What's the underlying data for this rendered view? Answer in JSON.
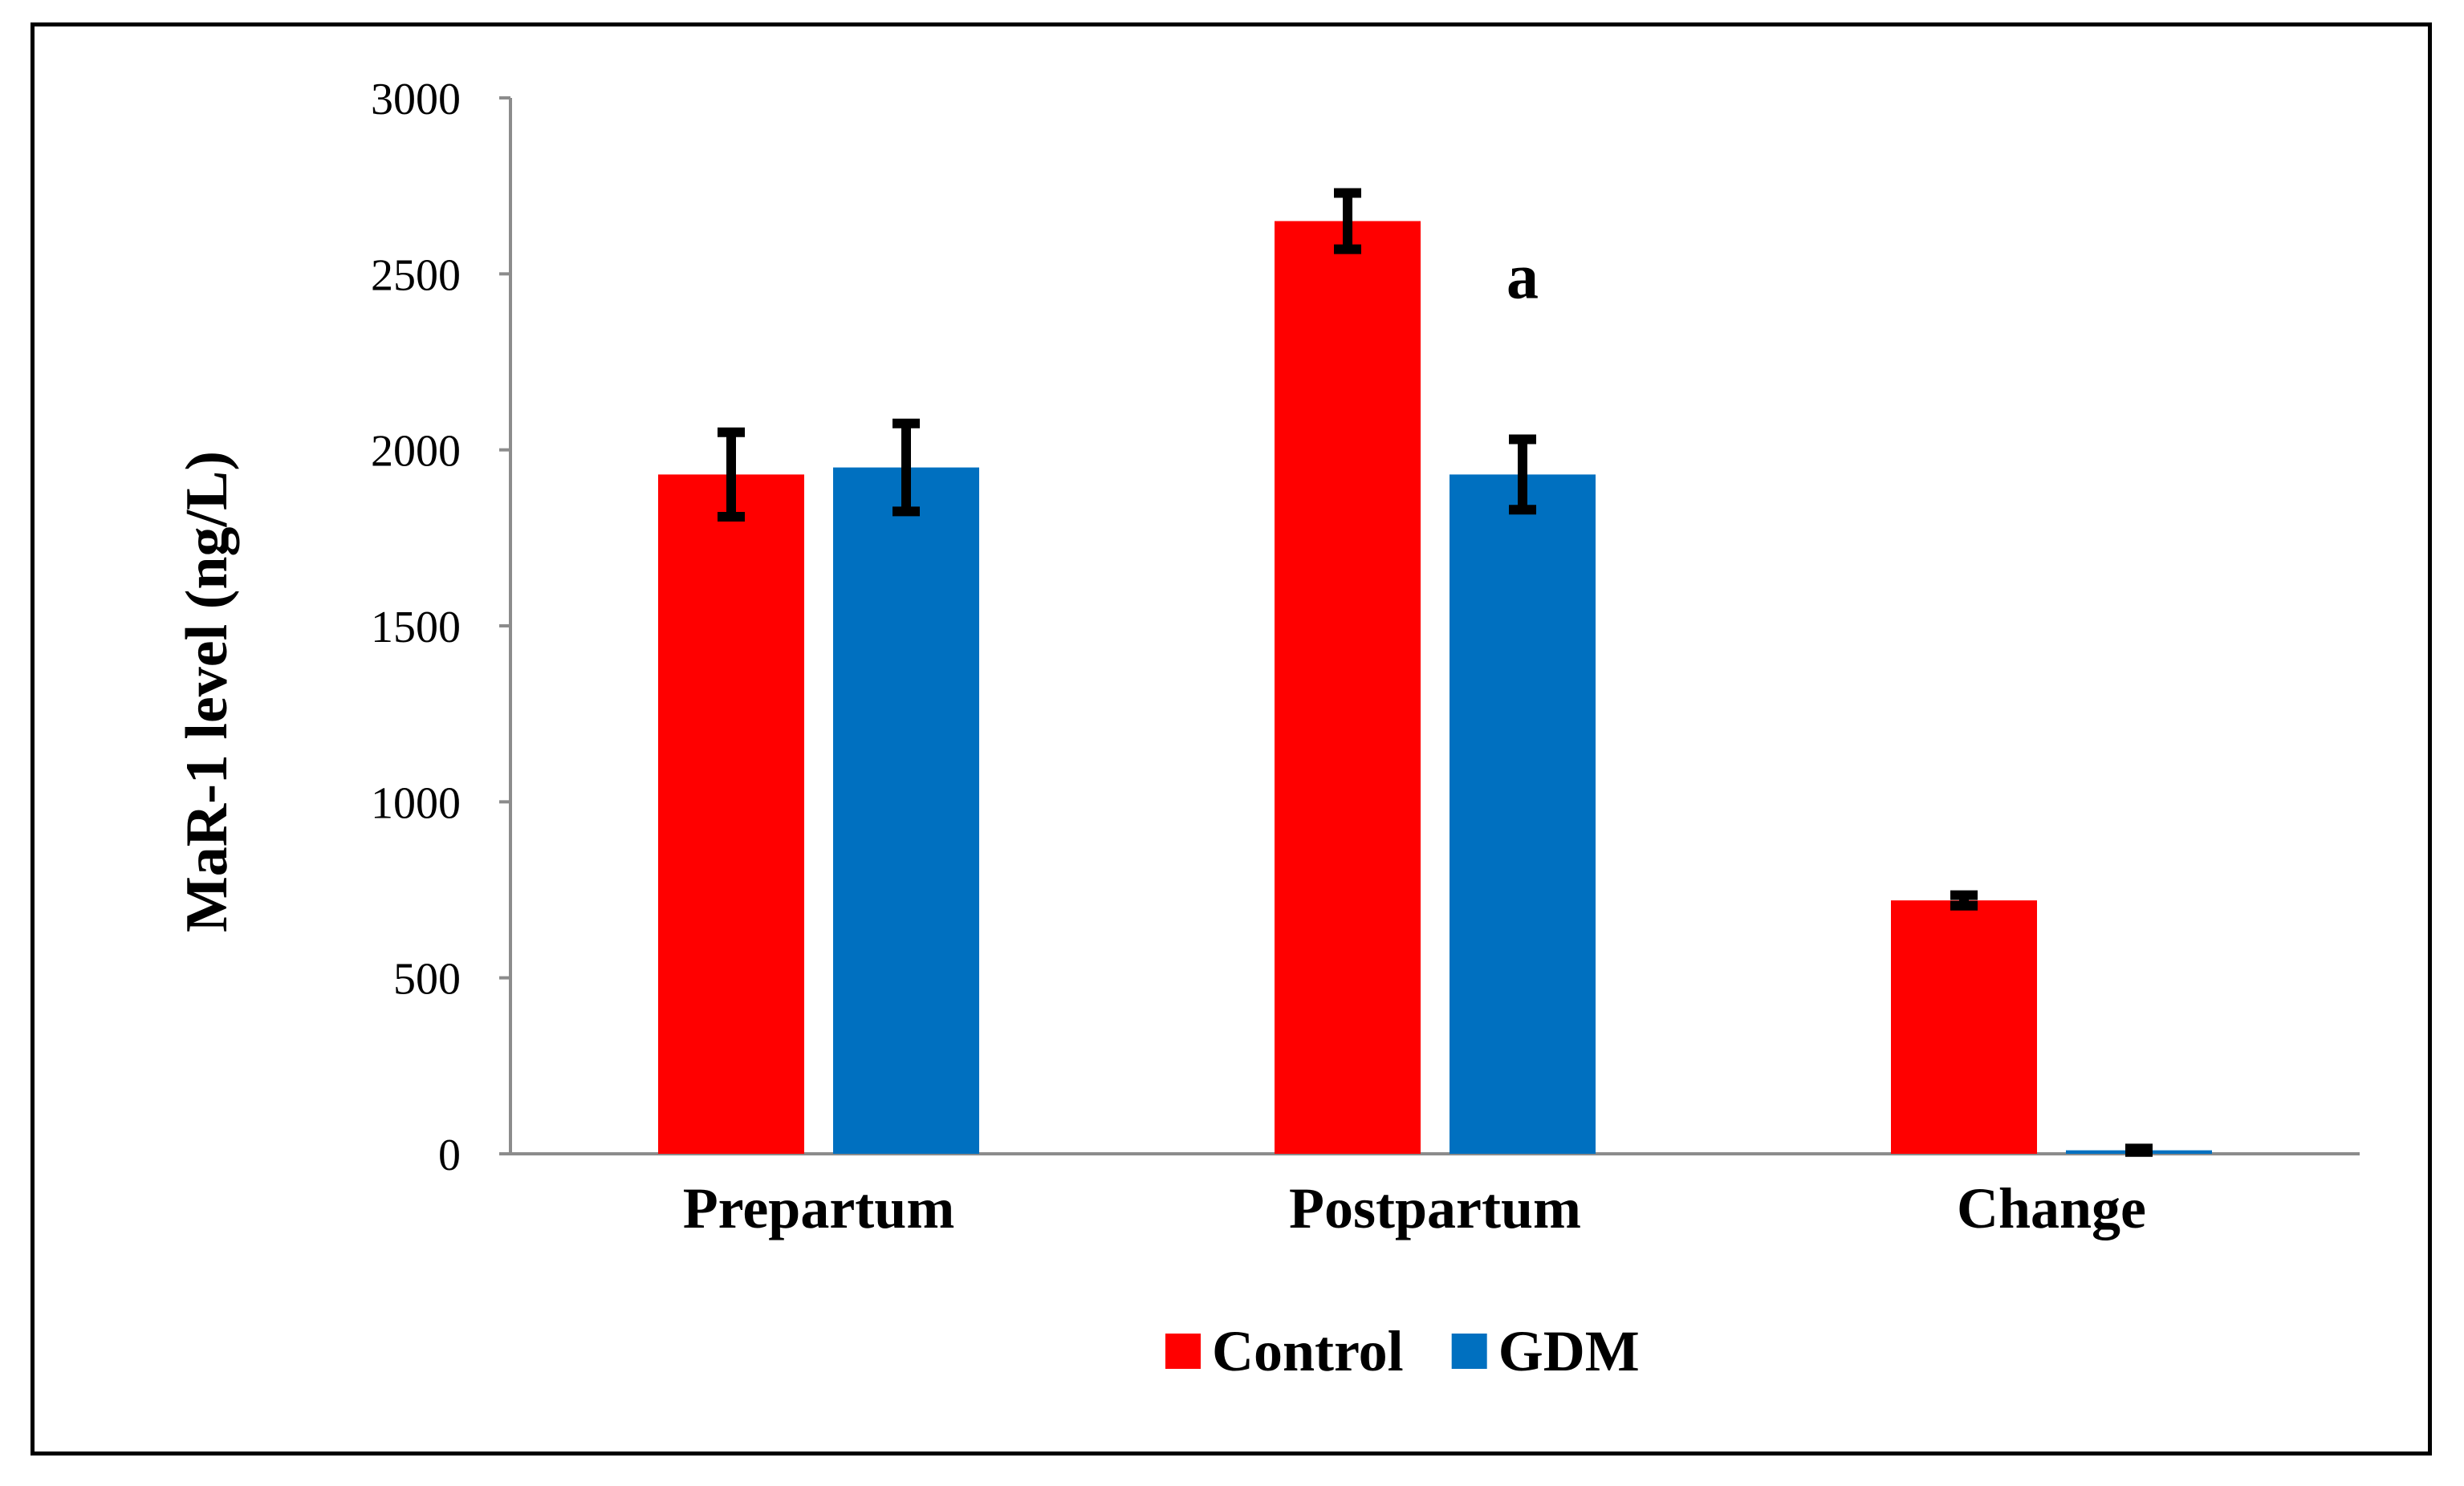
{
  "chart_data": {
    "type": "bar",
    "title": "",
    "xlabel": "",
    "ylabel": "MaR-1 level (ng/L)",
    "ylim": [
      0,
      3000
    ],
    "yticks": [
      0,
      500,
      1000,
      1500,
      2000,
      2500,
      3000
    ],
    "categories": [
      "Prepartum",
      "Postpartum",
      "Change"
    ],
    "series": [
      {
        "name": "Control",
        "color": "#ff0000",
        "values": [
          1930,
          2650,
          720
        ],
        "errors": [
          120,
          80,
          15
        ]
      },
      {
        "name": "GDM",
        "color": "#0070c0",
        "values": [
          1950,
          1930,
          10
        ],
        "errors": [
          125,
          100,
          5
        ]
      }
    ],
    "annotations": [
      {
        "text": "a",
        "category": "Postpartum",
        "series": "GDM"
      }
    ],
    "legend": {
      "position": "bottom",
      "entries": [
        "Control",
        "GDM"
      ]
    },
    "grid": false
  }
}
